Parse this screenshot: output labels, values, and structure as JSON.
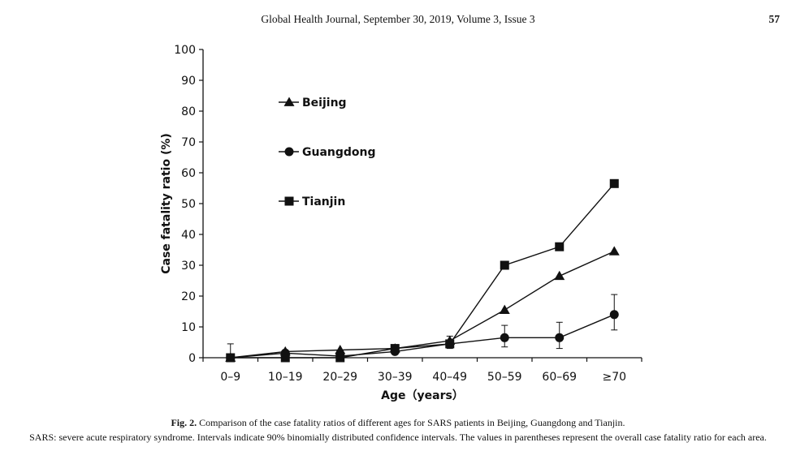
{
  "header": {
    "journal": "Global Health Journal, September 30, 2019, Volume 3, Issue 3",
    "page_number": "57"
  },
  "caption": {
    "label": "Fig. 2.",
    "text": "Comparison of the case fatality ratios of different ages for SARS patients in Beijing, Guangdong and Tianjin.",
    "note": "SARS: severe acute respiratory syndrome. Intervals indicate 90% binomially distributed confidence intervals. The values in parentheses represent the overall case fatality ratio for each area."
  },
  "chart_data": {
    "type": "line",
    "title": "",
    "xlabel": "Age（years）",
    "ylabel": "Case fatality ratio (%)",
    "categories": [
      "0–9",
      "10–19",
      "20–29",
      "30–39",
      "40–49",
      "50–59",
      "60–69",
      "≥70"
    ],
    "ylim": [
      0,
      100
    ],
    "yticks": [
      0,
      10,
      20,
      30,
      40,
      50,
      60,
      70,
      80,
      90,
      100
    ],
    "grid": false,
    "legend_position": "top-left",
    "series": [
      {
        "name": "Beijing",
        "marker": "triangle",
        "values": [
          0,
          2,
          2.5,
          3,
          5.5,
          15.5,
          26.5,
          34.5
        ]
      },
      {
        "name": "Guangdong",
        "marker": "circle",
        "values": [
          0,
          1.5,
          0.5,
          2,
          4.5,
          6.5,
          6.5,
          14
        ],
        "error_bars": [
          [
            -4.5,
            4.5
          ],
          null,
          null,
          null,
          [
            -1.5,
            2.5
          ],
          [
            -3,
            4
          ],
          [
            -3.5,
            5
          ],
          [
            -5,
            6.5
          ]
        ]
      },
      {
        "name": "Tianjin",
        "marker": "square",
        "values": [
          0,
          0,
          0,
          3,
          4.5,
          30,
          36,
          56.5
        ]
      }
    ]
  }
}
